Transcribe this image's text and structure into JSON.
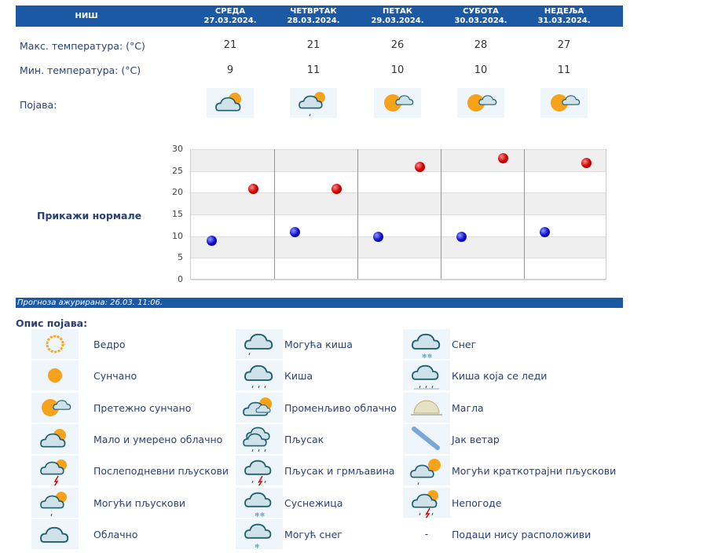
{
  "header": {
    "city": "НИШ",
    "days": [
      {
        "name": "СРЕДА",
        "date": "27.03.2024.",
        "max": "21",
        "min": "9",
        "icon": "partly-cloudy"
      },
      {
        "name": "ЧЕТВРТАК",
        "date": "28.03.2024.",
        "max": "21",
        "min": "11",
        "icon": "possible-showers"
      },
      {
        "name": "ПЕТАК",
        "date": "29.03.2024.",
        "max": "26",
        "min": "10",
        "icon": "mostly-sunny"
      },
      {
        "name": "СУБОТА",
        "date": "30.03.2024.",
        "max": "28",
        "min": "10",
        "icon": "mostly-sunny"
      },
      {
        "name": "НЕДЕЉА",
        "date": "31.03.2024.",
        "max": "27",
        "min": "11",
        "icon": "mostly-sunny"
      }
    ]
  },
  "rows": {
    "max_label": "Макс. температура: (°C)",
    "min_label": "Мин. температура: (°C)",
    "phen_label": "Појава:"
  },
  "normals_link": "Прикажи нормале",
  "chart_data": {
    "type": "scatter",
    "categories": [
      "27.03.2024.",
      "28.03.2024.",
      "29.03.2024.",
      "30.03.2024.",
      "31.03.2024."
    ],
    "series": [
      {
        "name": "max",
        "color": "#d10000",
        "values": [
          21,
          21,
          26,
          28,
          27
        ]
      },
      {
        "name": "min",
        "color": "#1010d0",
        "values": [
          9,
          11,
          10,
          10,
          11
        ]
      }
    ],
    "ylim": [
      0,
      30
    ],
    "yticks": [
      "0",
      "5",
      "10",
      "15",
      "20",
      "25",
      "30"
    ],
    "grid": true
  },
  "updated": "Прогноза ажурирана:  26.03. 11:06.",
  "legend": {
    "title": "Опис појава:",
    "items": [
      {
        "label": "Ведро",
        "icon": "clear"
      },
      {
        "label": "Сунчано",
        "icon": "sunny"
      },
      {
        "label": "Претежно сунчано",
        "icon": "mostly-sunny"
      },
      {
        "label": "Мало и умерено облачно",
        "icon": "partly-cloudy"
      },
      {
        "label": "Послеподневни пљускови",
        "icon": "afternoon-showers"
      },
      {
        "label": "Могући пљускови",
        "icon": "possible-showers"
      },
      {
        "label": "Облачно",
        "icon": "cloudy"
      },
      {
        "label": "Могућа киша",
        "icon": "possible-rain"
      },
      {
        "label": "Киша",
        "icon": "rain"
      },
      {
        "label": "Променљиво облачно",
        "icon": "variable-cloudy"
      },
      {
        "label": "Пљусак",
        "icon": "shower"
      },
      {
        "label": "Пљусак и грмљавина",
        "icon": "thunder-shower"
      },
      {
        "label": "Суснежица",
        "icon": "sleet"
      },
      {
        "label": "Могућ снег",
        "icon": "possible-snow"
      },
      {
        "label": "Снег",
        "icon": "snow"
      },
      {
        "label": "Киша која се леди",
        "icon": "freezing-rain"
      },
      {
        "label": "Магла",
        "icon": "fog"
      },
      {
        "label": "Јак ветар",
        "icon": "wind"
      },
      {
        "label": "Могући краткотрајни пљускови",
        "icon": "brief-showers"
      },
      {
        "label": "Непогоде",
        "icon": "storm"
      },
      {
        "label": "Подаци нису расположиви",
        "icon": "dash",
        "symbol": "-"
      }
    ]
  }
}
